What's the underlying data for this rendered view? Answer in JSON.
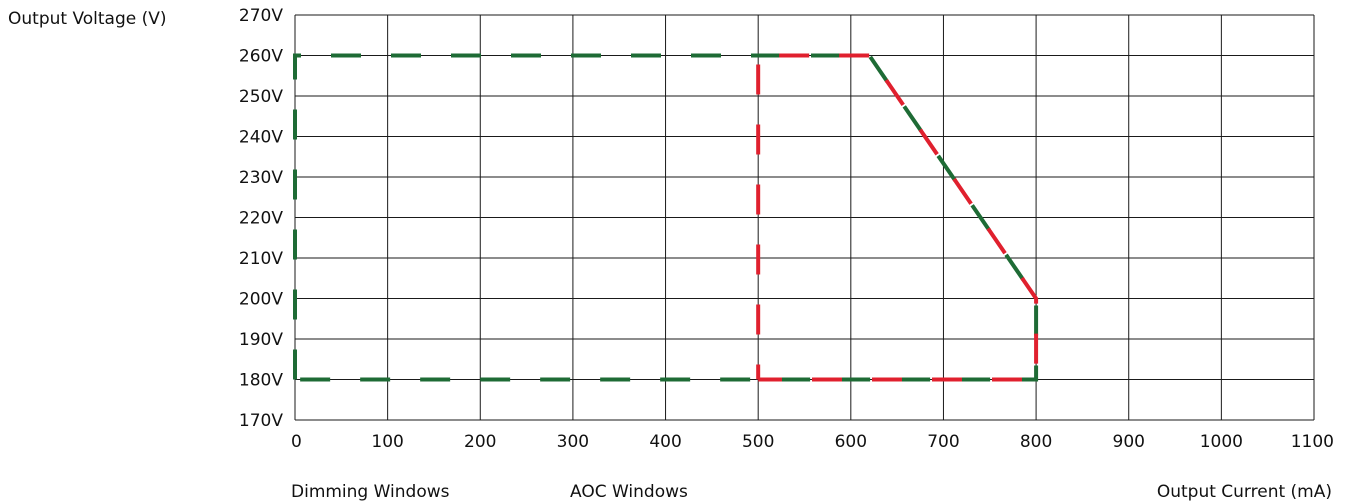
{
  "chart_data": {
    "type": "line",
    "ylabel": "Output Voltage (V)",
    "xlabel": "Output Current (mA)",
    "xlim": [
      0,
      1100
    ],
    "ylim": [
      170,
      270
    ],
    "x_ticks": [
      0,
      100,
      200,
      300,
      400,
      500,
      600,
      700,
      800,
      900,
      1000,
      1100
    ],
    "x_tick_labels": [
      "0",
      "100",
      "200",
      "300",
      "400",
      "500",
      "600",
      "700",
      "800",
      "900",
      "1000",
      "1100"
    ],
    "y_ticks": [
      170,
      180,
      190,
      200,
      210,
      220,
      230,
      240,
      250,
      260,
      270
    ],
    "y_tick_labels": [
      "170V",
      "180V",
      "190V",
      "200V",
      "210V",
      "220V",
      "230V",
      "240V",
      "250V",
      "260V",
      "270V"
    ],
    "grid": true,
    "legend_labels": [
      "Dimming Windows",
      "AOC Windows"
    ],
    "series": [
      {
        "color": "#1e6b35",
        "dash": "long",
        "points": [
          [
            0,
            180
          ],
          [
            0,
            260
          ],
          [
            620,
            260
          ],
          [
            800,
            200
          ],
          [
            800,
            180
          ],
          [
            0,
            180
          ]
        ]
      },
      {
        "color": "#e0202e",
        "dash": "long",
        "points": [
          [
            500,
            180
          ],
          [
            500,
            260
          ],
          [
            620,
            260
          ],
          [
            800,
            200
          ],
          [
            800,
            180
          ],
          [
            500,
            180
          ]
        ]
      }
    ]
  }
}
